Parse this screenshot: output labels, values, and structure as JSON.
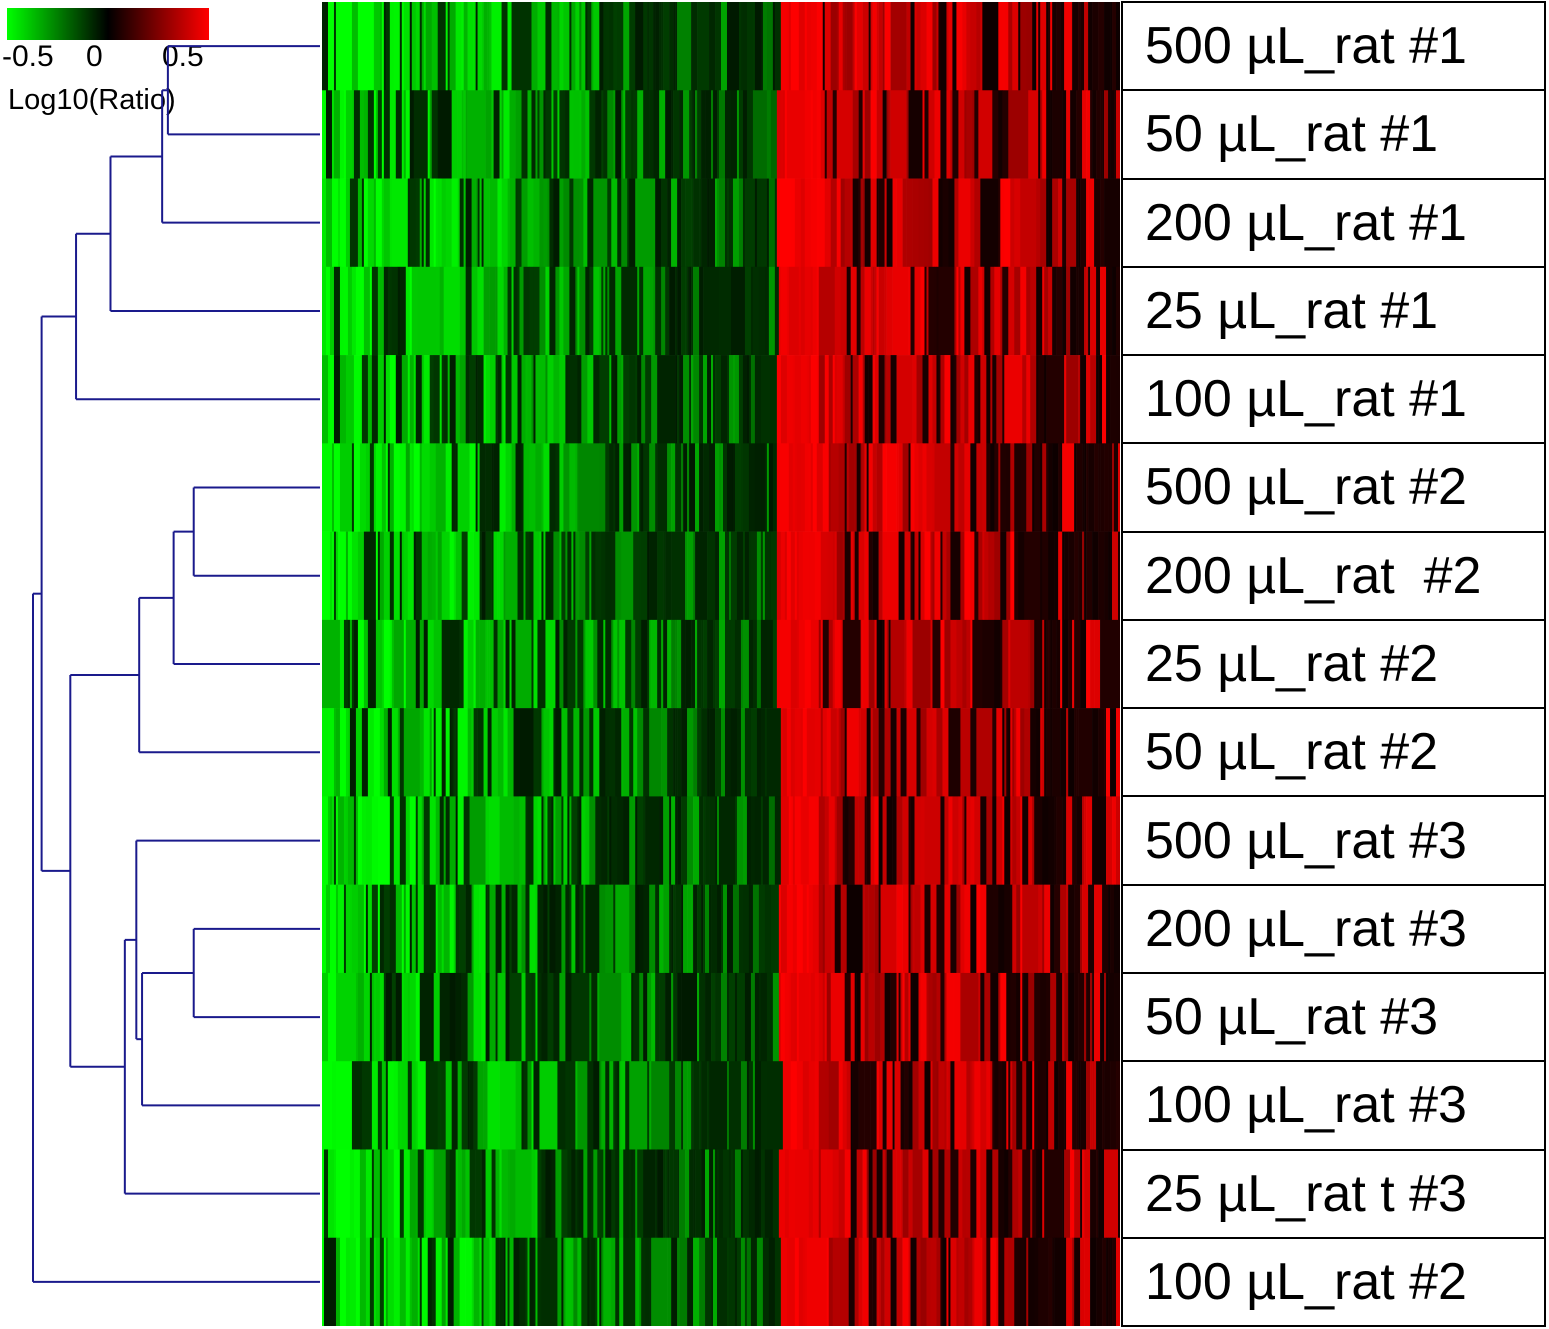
{
  "chart_data": {
    "type": "heatmap",
    "title": "",
    "colorbar": {
      "title": "Log10(Ratio)",
      "ticks": [
        "-0.5",
        "0",
        "0.5"
      ],
      "range": [
        -0.5,
        0.5
      ],
      "colors": {
        "low": "#00ff00",
        "mid": "#000000",
        "high": "#ff0000"
      }
    },
    "row_labels": [
      "500 µL_rat #1",
      "50 µL_rat #1",
      "200 µL_rat #1",
      "25 µL_rat #1",
      "100 µL_rat #1",
      "500 µL_rat #2",
      "200 µL_rat  #2",
      "25 µL_rat #2",
      "50 µL_rat #2",
      "500 µL_rat #3",
      "200 µL_rat #3",
      "50 µL_rat #3",
      "100 µL_rat #3",
      "25 µL_rat t #3",
      "100 µL_rat #2"
    ],
    "dendrogram": {
      "merges": [
        {
          "a": 0,
          "b": 1,
          "height": 0.53
        },
        {
          "a": 15,
          "b": 2,
          "height": 0.55
        },
        {
          "a": 16,
          "b": 3,
          "height": 0.73
        },
        {
          "a": 17,
          "b": 4,
          "height": 0.85
        },
        {
          "a": 5,
          "b": 6,
          "height": 0.44
        },
        {
          "a": 19,
          "b": 7,
          "height": 0.51
        },
        {
          "a": 20,
          "b": 8,
          "height": 0.63
        },
        {
          "a": 10,
          "b": 11,
          "height": 0.44
        },
        {
          "a": 22,
          "b": 12,
          "height": 0.62
        },
        {
          "a": 23,
          "b": 9,
          "height": 0.64
        },
        {
          "a": 24,
          "b": 13,
          "height": 0.68
        },
        {
          "a": 21,
          "b": 25,
          "height": 0.87
        },
        {
          "a": 18,
          "b": 26,
          "height": 0.97
        },
        {
          "a": 27,
          "b": 14,
          "height": 1.0
        }
      ]
    },
    "columns": {
      "count": 400,
      "pattern": "left ~57% of genes mostly down-regulated (green/black), right ~43% mostly up-regulated (red/black)"
    }
  }
}
